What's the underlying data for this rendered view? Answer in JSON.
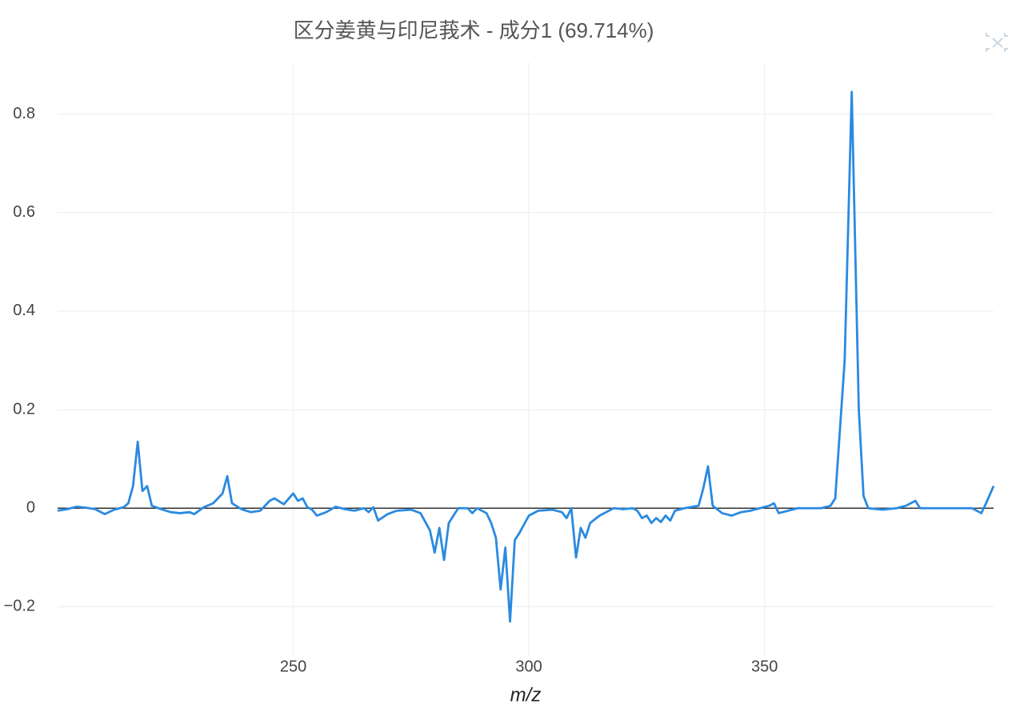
{
  "chart_data": {
    "type": "line",
    "title": "区分姜黄与印尼莪术 - 成分1 (69.714%)",
    "x_label": "m/z",
    "xlim": [
      200,
      398.6
    ],
    "xticks": [
      250,
      300,
      350
    ],
    "ylim": [
      -0.3,
      0.905
    ],
    "yticks": [
      {
        "value": -0.2,
        "label": "−0.2"
      },
      0,
      0.2,
      0.4,
      0.6,
      0.8
    ],
    "grid": true,
    "zeroline": true,
    "series": [
      {
        "color": "#2a8ae0",
        "x": [
          200,
          202,
          204,
          206,
          208,
          210,
          212,
          214,
          215,
          216,
          217,
          218,
          219,
          220,
          222,
          224,
          226,
          228,
          229,
          231,
          233,
          235,
          236,
          237,
          239,
          241,
          243,
          245,
          246,
          248,
          250,
          251,
          252,
          253,
          254,
          255,
          257,
          259,
          261,
          263,
          265,
          266,
          267,
          268,
          270,
          272,
          275,
          277,
          279,
          280,
          281,
          282,
          283,
          285,
          287,
          288,
          289,
          291,
          292,
          293,
          294,
          295,
          296,
          297,
          298,
          300,
          302,
          305,
          307,
          308,
          309,
          310,
          311,
          312,
          313,
          315,
          316,
          318,
          320,
          322,
          323,
          324,
          325,
          326,
          327,
          328,
          329,
          330,
          331,
          333,
          336,
          337,
          338,
          339,
          341,
          343,
          345,
          347,
          349,
          351,
          352,
          353,
          355,
          357,
          360,
          362,
          364,
          365,
          367,
          368.5,
          370,
          371,
          372,
          375,
          378,
          380,
          382,
          383,
          386,
          390,
          394,
          396,
          397,
          398.6
        ],
        "values": [
          -0.005,
          -0.002,
          0.003,
          0.001,
          -0.002,
          -0.012,
          -0.003,
          0.002,
          0.01,
          0.045,
          0.135,
          0.035,
          0.045,
          0.005,
          -0.002,
          -0.008,
          -0.01,
          -0.008,
          -0.012,
          0.002,
          0.01,
          0.03,
          0.065,
          0.01,
          -0.002,
          -0.008,
          -0.005,
          0.015,
          0.02,
          0.008,
          0.03,
          0.015,
          0.02,
          0.002,
          -0.003,
          -0.015,
          -0.008,
          0.003,
          -0.002,
          -0.005,
          0,
          -0.008,
          0.002,
          -0.025,
          -0.012,
          -0.005,
          -0.003,
          -0.01,
          -0.045,
          -0.09,
          -0.04,
          -0.105,
          -0.03,
          0,
          0,
          -0.01,
          0,
          -0.01,
          -0.03,
          -0.06,
          -0.165,
          -0.08,
          -0.23,
          -0.065,
          -0.05,
          -0.015,
          -0.005,
          -0.003,
          -0.008,
          -0.02,
          0,
          -0.1,
          -0.04,
          -0.06,
          -0.03,
          -0.015,
          -0.01,
          0,
          -0.002,
          0,
          -0.005,
          -0.02,
          -0.015,
          -0.03,
          -0.02,
          -0.028,
          -0.015,
          -0.025,
          -0.005,
          0,
          0.005,
          0.04,
          0.085,
          0.005,
          -0.01,
          -0.015,
          -0.008,
          -0.005,
          0,
          0.005,
          0.01,
          -0.01,
          -0.005,
          0,
          0,
          0,
          0.005,
          0.02,
          0.3,
          0.845,
          0.2,
          0.025,
          0,
          -0.003,
          0,
          0.005,
          0.015,
          0,
          0,
          0,
          0,
          -0.01,
          0.01,
          0.045
        ]
      }
    ]
  }
}
